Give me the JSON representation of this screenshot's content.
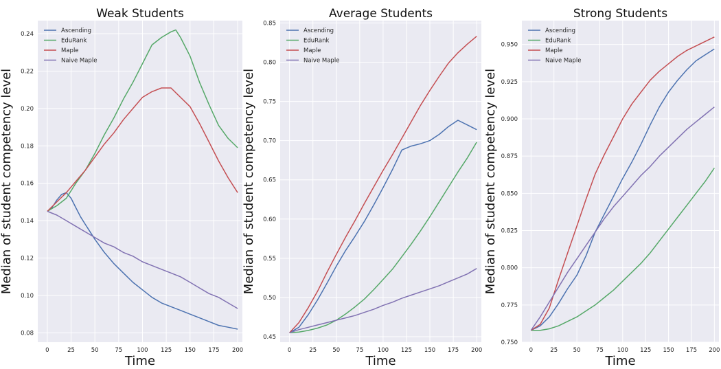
{
  "figure": {
    "colors": {
      "Ascending": "#4C72B0",
      "EduRank": "#55A868",
      "Maple": "#C44E52",
      "Naive Maple": "#8172B2",
      "plot_background": "#EAEAF2",
      "grid": "#FFFFFF"
    }
  },
  "chart_data": [
    {
      "type": "line",
      "title": "Weak Students",
      "xlabel": "Time",
      "ylabel": "Median of student competency level",
      "xlim": [
        -10,
        205
      ],
      "ylim": [
        0.075,
        0.247
      ],
      "xticks": [
        0,
        25,
        50,
        75,
        100,
        125,
        150,
        175,
        200
      ],
      "yticks": [
        0.08,
        0.1,
        0.12,
        0.14,
        0.16,
        0.18,
        0.2,
        0.22,
        0.24
      ],
      "ytick_decimals": 2,
      "grid": true,
      "legend_position": "top-left",
      "series": [
        {
          "name": "Ascending",
          "x": [
            0,
            5,
            10,
            15,
            20,
            25,
            30,
            35,
            40,
            50,
            60,
            70,
            80,
            90,
            100,
            110,
            120,
            130,
            140,
            150,
            160,
            170,
            180,
            190,
            200
          ],
          "y": [
            0.145,
            0.147,
            0.151,
            0.154,
            0.155,
            0.152,
            0.147,
            0.142,
            0.138,
            0.13,
            0.123,
            0.117,
            0.112,
            0.107,
            0.103,
            0.099,
            0.096,
            0.094,
            0.092,
            0.09,
            0.088,
            0.086,
            0.084,
            0.083,
            0.082
          ]
        },
        {
          "name": "EduRank",
          "x": [
            0,
            10,
            20,
            30,
            40,
            50,
            60,
            70,
            80,
            90,
            100,
            110,
            120,
            130,
            135,
            140,
            150,
            160,
            170,
            180,
            190,
            200
          ],
          "y": [
            0.145,
            0.148,
            0.152,
            0.16,
            0.167,
            0.176,
            0.186,
            0.195,
            0.205,
            0.214,
            0.224,
            0.234,
            0.238,
            0.241,
            0.242,
            0.238,
            0.228,
            0.214,
            0.202,
            0.191,
            0.184,
            0.179
          ]
        },
        {
          "name": "Maple",
          "x": [
            0,
            10,
            20,
            30,
            40,
            50,
            60,
            70,
            80,
            90,
            100,
            110,
            120,
            130,
            140,
            150,
            160,
            170,
            180,
            190,
            200
          ],
          "y": [
            0.145,
            0.15,
            0.155,
            0.161,
            0.167,
            0.174,
            0.181,
            0.187,
            0.194,
            0.2,
            0.206,
            0.209,
            0.211,
            0.211,
            0.206,
            0.201,
            0.192,
            0.182,
            0.172,
            0.163,
            0.155
          ]
        },
        {
          "name": "Naive Maple",
          "x": [
            0,
            10,
            20,
            30,
            40,
            50,
            60,
            70,
            80,
            90,
            100,
            110,
            120,
            130,
            140,
            150,
            160,
            170,
            180,
            190,
            200
          ],
          "y": [
            0.145,
            0.143,
            0.14,
            0.137,
            0.134,
            0.131,
            0.128,
            0.126,
            0.123,
            0.121,
            0.118,
            0.116,
            0.114,
            0.112,
            0.11,
            0.107,
            0.104,
            0.101,
            0.099,
            0.096,
            0.093
          ]
        }
      ]
    },
    {
      "type": "line",
      "title": "Average Students",
      "xlabel": "Time",
      "ylabel": "Median of student competency level",
      "xlim": [
        -10,
        205
      ],
      "ylim": [
        0.443,
        0.853
      ],
      "xticks": [
        0,
        25,
        50,
        75,
        100,
        125,
        150,
        175,
        200
      ],
      "yticks": [
        0.45,
        0.5,
        0.55,
        0.6,
        0.65,
        0.7,
        0.75,
        0.8,
        0.85
      ],
      "ytick_decimals": 2,
      "grid": true,
      "legend_position": "top-left",
      "series": [
        {
          "name": "Ascending",
          "x": [
            0,
            10,
            20,
            30,
            40,
            50,
            60,
            70,
            80,
            90,
            100,
            110,
            120,
            130,
            140,
            150,
            160,
            170,
            180,
            190,
            200
          ],
          "y": [
            0.455,
            0.462,
            0.478,
            0.497,
            0.518,
            0.54,
            0.56,
            0.578,
            0.597,
            0.618,
            0.64,
            0.663,
            0.688,
            0.693,
            0.696,
            0.7,
            0.708,
            0.718,
            0.726,
            0.72,
            0.714
          ]
        },
        {
          "name": "EduRank",
          "x": [
            0,
            10,
            20,
            30,
            40,
            50,
            60,
            70,
            80,
            90,
            100,
            110,
            120,
            130,
            140,
            150,
            160,
            170,
            180,
            190,
            200
          ],
          "y": [
            0.455,
            0.456,
            0.458,
            0.461,
            0.465,
            0.471,
            0.479,
            0.488,
            0.498,
            0.51,
            0.523,
            0.536,
            0.552,
            0.568,
            0.585,
            0.603,
            0.622,
            0.641,
            0.66,
            0.678,
            0.698
          ]
        },
        {
          "name": "Maple",
          "x": [
            0,
            10,
            20,
            30,
            40,
            50,
            60,
            70,
            80,
            90,
            100,
            110,
            120,
            130,
            140,
            150,
            160,
            170,
            180,
            190,
            200
          ],
          "y": [
            0.455,
            0.468,
            0.487,
            0.508,
            0.532,
            0.555,
            0.577,
            0.598,
            0.62,
            0.641,
            0.662,
            0.682,
            0.703,
            0.724,
            0.745,
            0.764,
            0.782,
            0.799,
            0.812,
            0.823,
            0.833
          ]
        },
        {
          "name": "Naive Maple",
          "x": [
            0,
            10,
            20,
            30,
            40,
            50,
            60,
            70,
            80,
            90,
            100,
            110,
            120,
            130,
            140,
            150,
            160,
            170,
            180,
            190,
            200
          ],
          "y": [
            0.455,
            0.459,
            0.462,
            0.465,
            0.468,
            0.471,
            0.474,
            0.477,
            0.481,
            0.485,
            0.49,
            0.494,
            0.499,
            0.503,
            0.507,
            0.511,
            0.515,
            0.52,
            0.525,
            0.53,
            0.537
          ]
        }
      ]
    },
    {
      "type": "line",
      "title": "Strong Students",
      "xlabel": "Time",
      "ylabel": "Median of student competency level",
      "xlim": [
        -10,
        205
      ],
      "ylim": [
        0.75,
        0.966
      ],
      "xticks": [
        0,
        25,
        50,
        75,
        100,
        125,
        150,
        175,
        200
      ],
      "yticks": [
        0.75,
        0.775,
        0.8,
        0.825,
        0.85,
        0.875,
        0.9,
        0.925,
        0.95
      ],
      "ytick_decimals": 3,
      "grid": true,
      "legend_position": "top-left",
      "series": [
        {
          "name": "Ascending",
          "x": [
            0,
            10,
            20,
            30,
            40,
            50,
            60,
            70,
            80,
            90,
            100,
            110,
            120,
            130,
            140,
            150,
            160,
            170,
            180,
            190,
            200
          ],
          "y": [
            0.758,
            0.761,
            0.767,
            0.776,
            0.786,
            0.795,
            0.808,
            0.824,
            0.836,
            0.848,
            0.86,
            0.871,
            0.883,
            0.896,
            0.908,
            0.918,
            0.926,
            0.933,
            0.939,
            0.943,
            0.947
          ]
        },
        {
          "name": "EduRank",
          "x": [
            0,
            10,
            20,
            30,
            40,
            50,
            60,
            70,
            80,
            90,
            100,
            110,
            120,
            130,
            140,
            150,
            160,
            170,
            180,
            190,
            200
          ],
          "y": [
            0.758,
            0.758,
            0.759,
            0.761,
            0.764,
            0.767,
            0.771,
            0.775,
            0.78,
            0.785,
            0.791,
            0.797,
            0.803,
            0.81,
            0.818,
            0.826,
            0.834,
            0.842,
            0.85,
            0.858,
            0.867
          ]
        },
        {
          "name": "Maple",
          "x": [
            0,
            10,
            20,
            30,
            40,
            50,
            60,
            70,
            80,
            90,
            100,
            110,
            120,
            130,
            140,
            150,
            160,
            170,
            180,
            190,
            200
          ],
          "y": [
            0.758,
            0.762,
            0.773,
            0.792,
            0.81,
            0.828,
            0.846,
            0.863,
            0.876,
            0.888,
            0.9,
            0.91,
            0.918,
            0.926,
            0.932,
            0.937,
            0.942,
            0.946,
            0.949,
            0.952,
            0.955
          ]
        },
        {
          "name": "Naive Maple",
          "x": [
            0,
            10,
            20,
            30,
            40,
            50,
            60,
            70,
            80,
            90,
            100,
            110,
            120,
            130,
            140,
            150,
            160,
            170,
            180,
            190,
            200
          ],
          "y": [
            0.758,
            0.767,
            0.777,
            0.787,
            0.797,
            0.806,
            0.815,
            0.824,
            0.833,
            0.841,
            0.848,
            0.855,
            0.862,
            0.868,
            0.875,
            0.881,
            0.887,
            0.893,
            0.898,
            0.903,
            0.908
          ]
        }
      ]
    }
  ]
}
